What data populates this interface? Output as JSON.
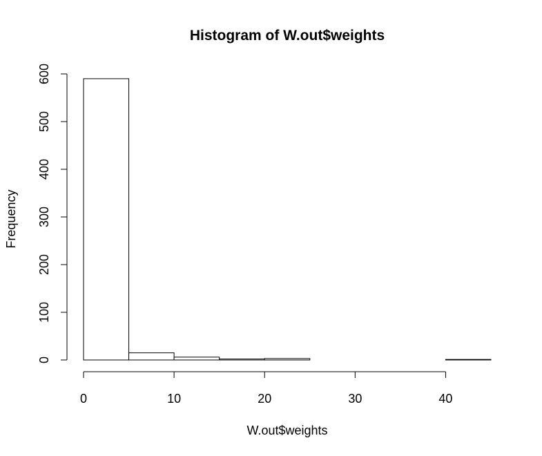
{
  "chart_data": {
    "type": "bar",
    "title": "Histogram of W.out$weights",
    "xlabel": "W.out$weights",
    "ylabel": "Frequency",
    "bins": [
      {
        "from": 0,
        "to": 5,
        "count": 590
      },
      {
        "from": 5,
        "to": 10,
        "count": 15
      },
      {
        "from": 10,
        "to": 15,
        "count": 6
      },
      {
        "from": 15,
        "to": 20,
        "count": 2
      },
      {
        "from": 20,
        "to": 25,
        "count": 3
      },
      {
        "from": 25,
        "to": 30,
        "count": 0
      },
      {
        "from": 30,
        "to": 35,
        "count": 0
      },
      {
        "from": 35,
        "to": 40,
        "count": 0
      },
      {
        "from": 40,
        "to": 45,
        "count": 1
      }
    ],
    "xlim": [
      0,
      45
    ],
    "ylim": [
      0,
      600
    ],
    "x_ticks": [
      0,
      10,
      20,
      30,
      40
    ],
    "y_ticks": [
      0,
      100,
      200,
      300,
      400,
      500,
      600
    ],
    "x_tick_labels": [
      "0",
      "10",
      "20",
      "30",
      "40"
    ],
    "y_tick_labels": [
      "0",
      "100",
      "200",
      "300",
      "400",
      "500",
      "600"
    ],
    "grid": false,
    "legend": "none",
    "bar_fill": "#ffffff",
    "bar_stroke": "#000000"
  }
}
